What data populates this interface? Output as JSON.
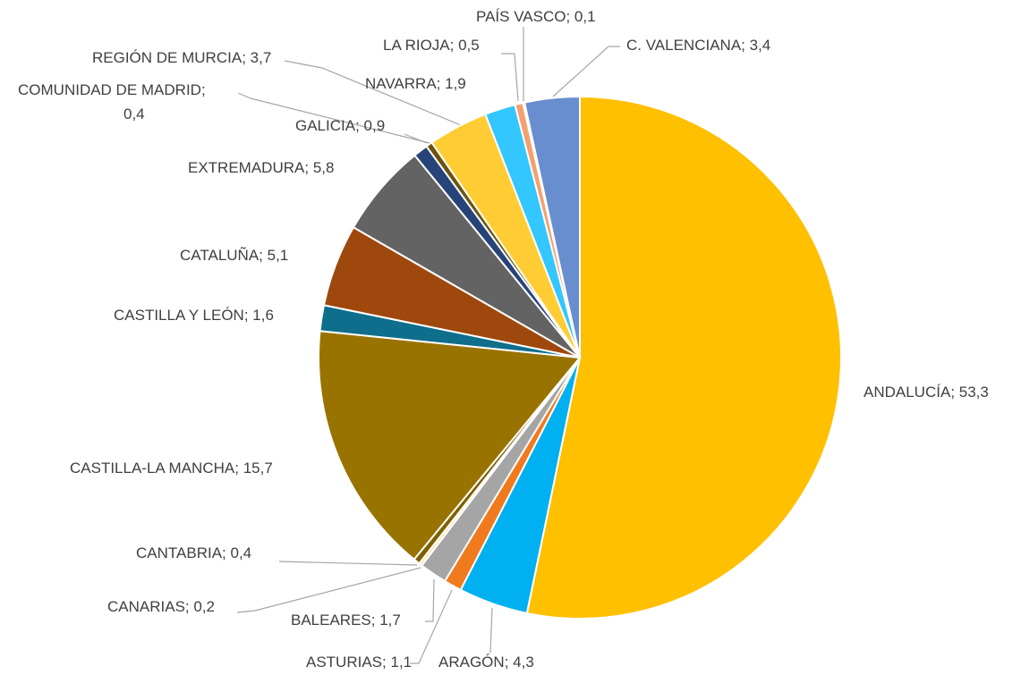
{
  "chart_data": {
    "type": "pie",
    "separator": "; ",
    "categories": [
      "ANDALUCÍA",
      "ARAGÓN",
      "ASTURIAS",
      "BALEARES",
      "CANARIAS",
      "CANTABRIA",
      "CASTILLA-LA MANCHA",
      "CASTILLA Y LEÓN",
      "CATALUÑA",
      "EXTREMADURA",
      "GALICIA",
      "COMUNIDAD DE MADRID",
      "REGIÓN DE MURCIA",
      "NAVARRA",
      "LA RIOJA",
      "PAÍS VASCO",
      "C. VALENCIANA"
    ],
    "values": [
      53.3,
      4.3,
      1.1,
      1.7,
      0.2,
      0.4,
      15.7,
      1.6,
      5.1,
      5.8,
      0.9,
      0.4,
      3.7,
      1.9,
      0.5,
      0.1,
      3.4
    ],
    "value_labels": [
      "53,3",
      "4,3",
      "1,1",
      "1,7",
      "0,2",
      "0,4",
      "15,7",
      "1,6",
      "5,1",
      "5,8",
      "0,9",
      "0,4",
      "3,7",
      "1,9",
      "0,5",
      "0,1",
      "3,4"
    ],
    "colors": [
      "#ffc000",
      "#00b0f0",
      "#f07a1e",
      "#a5a5a5",
      "#ffe6a8",
      "#7f6000",
      "#997300",
      "#0e6e8c",
      "#9e480e",
      "#636363",
      "#264478",
      "#6b5410",
      "#ffcd33",
      "#33c6ff",
      "#f4a070",
      "#c8c8c8",
      "#698ed0"
    ]
  }
}
